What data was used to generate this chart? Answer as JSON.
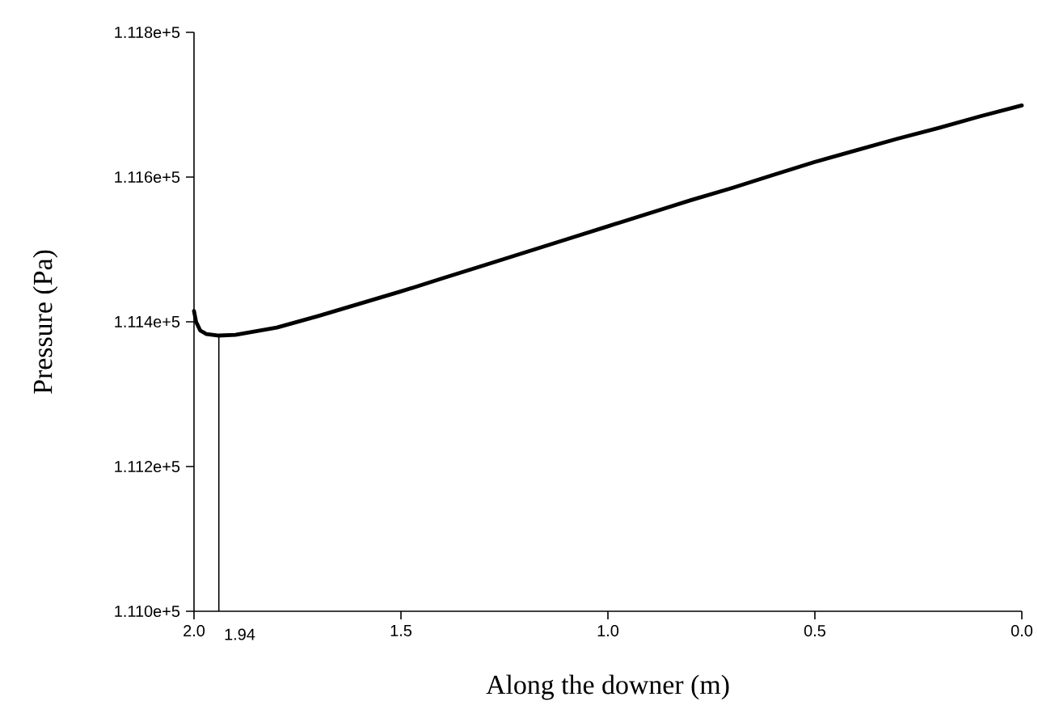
{
  "chart_data": {
    "type": "line",
    "xlabel": "Along the downer  (m)",
    "ylabel": "Pressure  (Pa)",
    "x": [
      2.0,
      1.995,
      1.985,
      1.97,
      1.94,
      1.9,
      1.8,
      1.7,
      1.6,
      1.5,
      1.4,
      1.3,
      1.2,
      1.1,
      1.0,
      0.9,
      0.8,
      0.7,
      0.6,
      0.5,
      0.4,
      0.3,
      0.2,
      0.1,
      0.0
    ],
    "series": [
      {
        "color": "#000000",
        "values": [
          111415,
          111400,
          111388,
          111383,
          111381,
          111382,
          111392,
          111408,
          111425,
          111442,
          111460,
          111478,
          111496,
          111514,
          111532,
          111550,
          111568,
          111585,
          111603,
          111621,
          111637,
          111653,
          111668,
          111684,
          111699
        ]
      }
    ],
    "xlim": [
      2.0,
      0.0
    ],
    "xticks": [
      {
        "value": 2.0,
        "label": "2.0"
      },
      {
        "value": 1.5,
        "label": "1.5"
      },
      {
        "value": 1.0,
        "label": "1.0"
      },
      {
        "value": 0.5,
        "label": "0.5"
      },
      {
        "value": 0.0,
        "label": "0.0"
      }
    ],
    "ylim": [
      111000,
      111800
    ],
    "yticks": [
      {
        "value": 111000,
        "label": "1.110e+5"
      },
      {
        "value": 111200,
        "label": "1.112e+5"
      },
      {
        "value": 111400,
        "label": "1.114e+5"
      },
      {
        "value": 111600,
        "label": "1.116e+5"
      },
      {
        "value": 111800,
        "label": "1.118e+5"
      }
    ],
    "ref_lines": [
      {
        "axis": "x",
        "value": 1.94,
        "label": "1.94"
      }
    ],
    "grid": false,
    "marker": "none",
    "line_style": "solid"
  }
}
